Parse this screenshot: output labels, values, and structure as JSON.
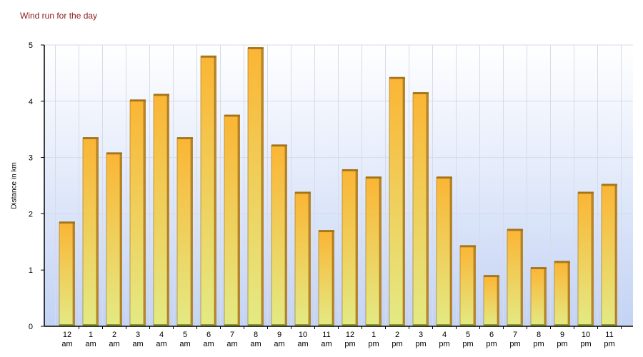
{
  "chart_data": {
    "type": "bar",
    "title": "Wind run for the day",
    "xlabel": "",
    "ylabel": "Distance in km",
    "ylim": [
      0,
      5
    ],
    "yticks": [
      0,
      1,
      2,
      3,
      4,
      5
    ],
    "grid": true,
    "categories": [
      {
        "hour": "12",
        "period": "am"
      },
      {
        "hour": "1",
        "period": "am"
      },
      {
        "hour": "2",
        "period": "am"
      },
      {
        "hour": "3",
        "period": "am"
      },
      {
        "hour": "4",
        "period": "am"
      },
      {
        "hour": "5",
        "period": "am"
      },
      {
        "hour": "6",
        "period": "am"
      },
      {
        "hour": "7",
        "period": "am"
      },
      {
        "hour": "8",
        "period": "am"
      },
      {
        "hour": "9",
        "period": "am"
      },
      {
        "hour": "10",
        "period": "am"
      },
      {
        "hour": "11",
        "period": "am"
      },
      {
        "hour": "12",
        "period": "pm"
      },
      {
        "hour": "1",
        "period": "pm"
      },
      {
        "hour": "2",
        "period": "pm"
      },
      {
        "hour": "3",
        "period": "pm"
      },
      {
        "hour": "4",
        "period": "pm"
      },
      {
        "hour": "5",
        "period": "pm"
      },
      {
        "hour": "6",
        "period": "pm"
      },
      {
        "hour": "7",
        "period": "pm"
      },
      {
        "hour": "8",
        "period": "pm"
      },
      {
        "hour": "9",
        "period": "pm"
      },
      {
        "hour": "10",
        "period": "pm"
      },
      {
        "hour": "11",
        "period": "pm"
      }
    ],
    "values": [
      1.85,
      3.35,
      3.08,
      4.02,
      4.12,
      3.35,
      4.8,
      3.75,
      4.95,
      3.22,
      2.38,
      1.7,
      2.78,
      2.65,
      4.42,
      4.15,
      2.65,
      1.43,
      0.9,
      1.72,
      1.04,
      1.15,
      2.38,
      2.52
    ],
    "colors": {
      "bar_top": "#fbb535",
      "bar_bottom": "#e3ea84",
      "bar_edge": "#9c6e12",
      "bar_side": "#b8862e",
      "bar_base": "#8e9a2e",
      "plot_bg_top": "#ffffff",
      "plot_bg_bottom": "#c3d3f5",
      "grid": "#d6dbe8",
      "title": "#8b1a1a"
    }
  }
}
